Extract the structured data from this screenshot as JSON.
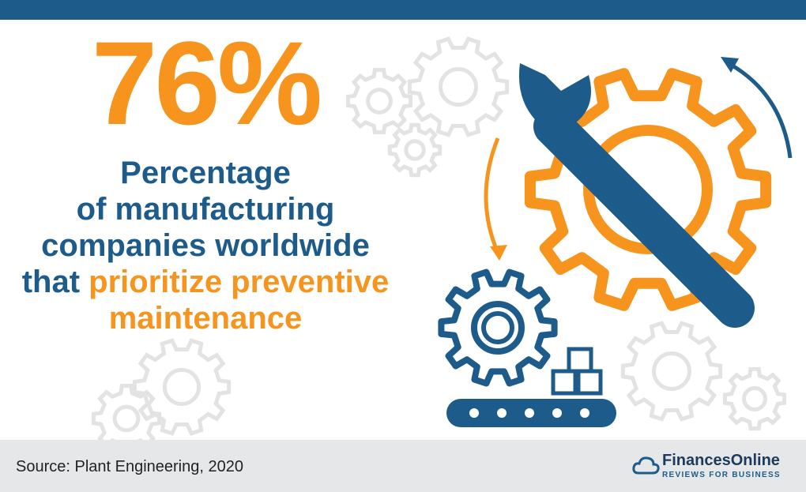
{
  "stat": "76%",
  "description": {
    "lines": [
      "Percentage",
      "of manufacturing",
      "companies worldwide",
      "that",
      "prioritize preventive",
      "maintenance"
    ]
  },
  "footer": {
    "source": "Source: Plant Engineering, 2020",
    "logo": "FinancesOnline",
    "tagline": "REVIEWS FOR BUSINESS"
  }
}
